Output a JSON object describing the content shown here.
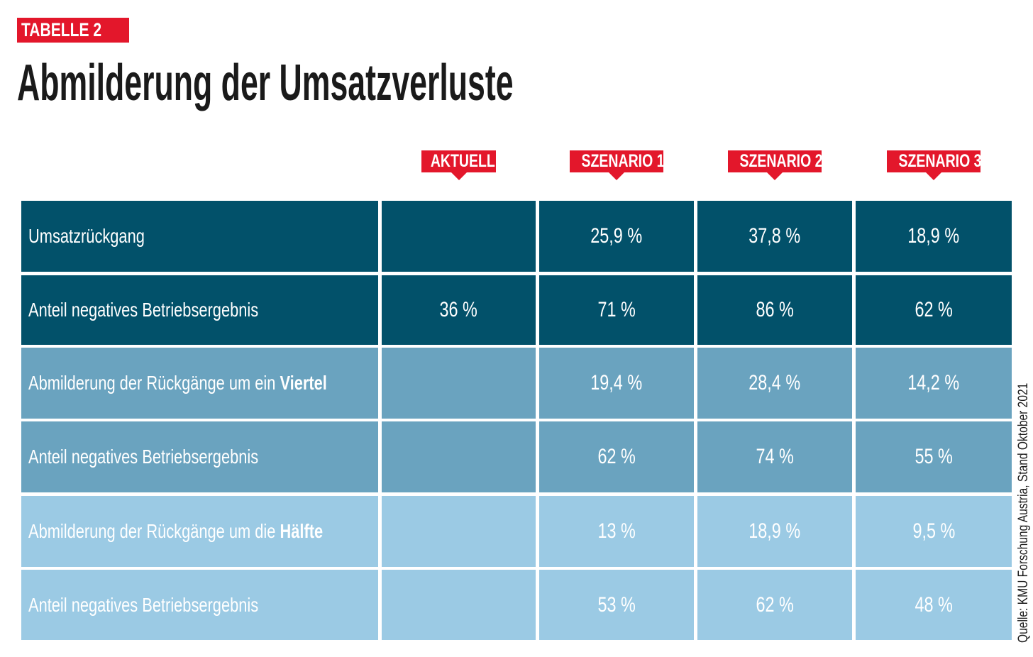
{
  "header": {
    "label": "TABELLE 2",
    "title": "Abmilderung der Umsatzverluste"
  },
  "table": {
    "columns": [
      "AKTUELL",
      "SZENARIO 1",
      "SZENARIO 2",
      "SZENARIO 3"
    ],
    "rows": [
      {
        "label": "Umsatzrückgang",
        "cells": [
          null,
          "25,9 %",
          "37,8 %",
          "18,9 %"
        ],
        "shade": "#02516a"
      },
      {
        "label": "Anteil negatives Betriebsergebnis",
        "cells": [
          "36 %",
          "71 %",
          "86 %",
          "62 %"
        ],
        "shade": "#02516a"
      },
      {
        "label": "Abmilderung der Rückgänge um ein",
        "emphasis": "Viertel",
        "cells": [
          null,
          "19,4 %",
          "28,4 %",
          "14,2 %"
        ],
        "shade": "#6aa3bf"
      },
      {
        "label": "Anteil negatives Betriebsergebnis",
        "cells": [
          null,
          "62 %",
          "74 %",
          "55 %"
        ],
        "shade": "#6aa3bf"
      },
      {
        "label": "Abmilderung der Rückgänge um die",
        "emphasis": "Hälfte",
        "cells": [
          null,
          "13 %",
          "18,9 %",
          "9,5 %"
        ],
        "shade": "#9bcae4"
      },
      {
        "label": "Anteil negatives Betriebsergebnis",
        "cells": [
          null,
          "53 %",
          "62 %",
          "48 %"
        ],
        "shade": "#9bcae4"
      }
    ]
  },
  "source": "Quelle: KMU Forschung Austria, Stand Oktober 2021"
}
